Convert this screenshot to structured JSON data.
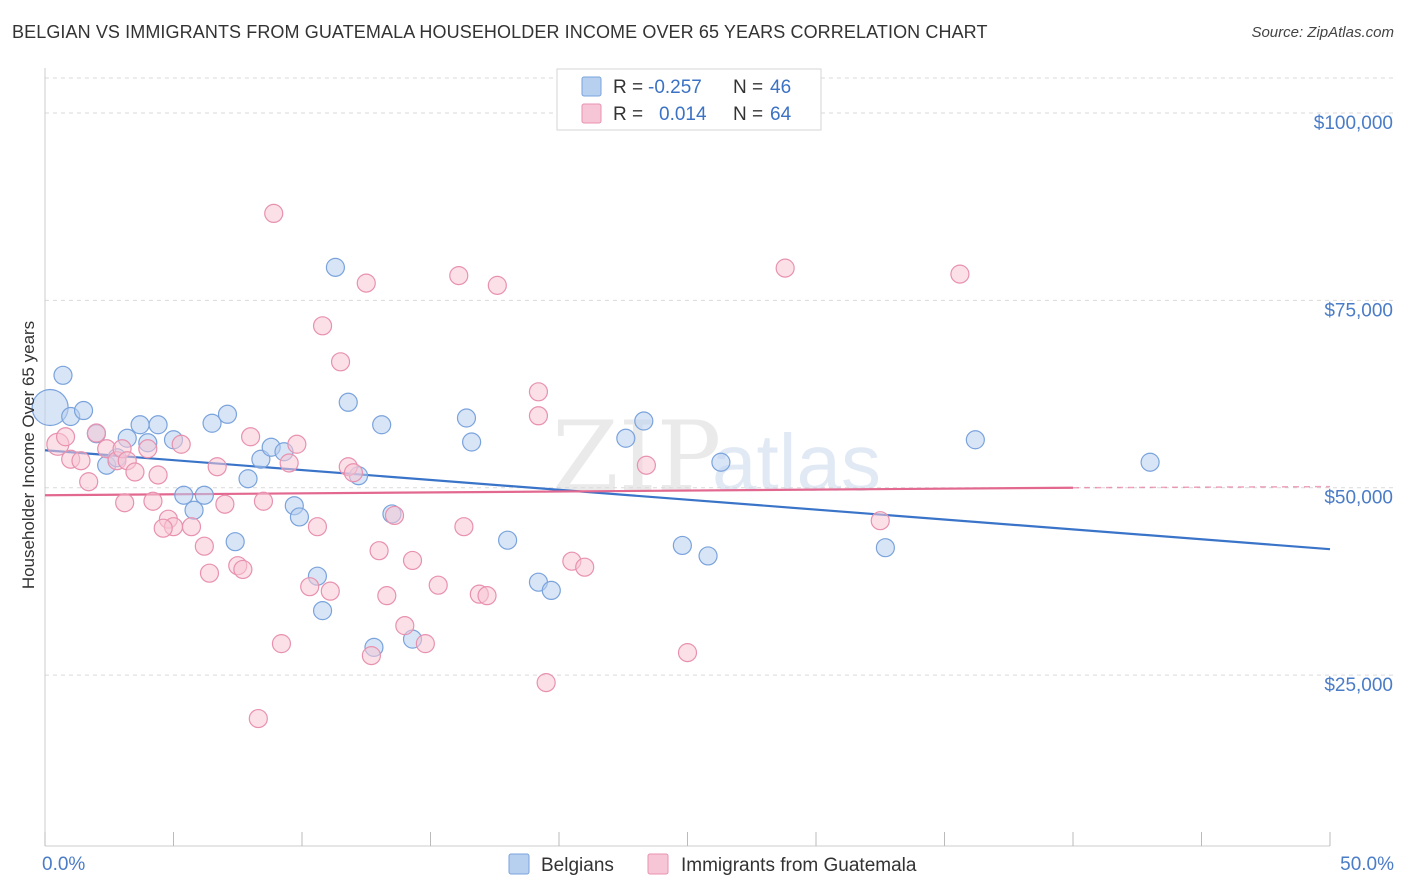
{
  "title": "BELGIAN VS IMMIGRANTS FROM GUATEMALA HOUSEHOLDER INCOME OVER 65 YEARS CORRELATION CHART",
  "source": "Source: ZipAtlas.com",
  "watermark": {
    "zip": "ZIP",
    "atlas": "atlas"
  },
  "legend": {
    "rows": [
      {
        "r_label": "R =",
        "r_value": "-0.257",
        "n_label": "N =",
        "n_value": "46"
      },
      {
        "r_label": "R =",
        "r_value": "0.014",
        "n_label": "N =",
        "n_value": "64"
      }
    ]
  },
  "bottom_legend": [
    "Belgians",
    "Immigrants from Guatemala"
  ],
  "colors": {
    "belgians_fill": "#b8d0f0",
    "belgians_stroke": "#7aa3dc",
    "belgians_line": "#3a74c9",
    "guatemala_fill": "#f7c6d6",
    "guatemala_stroke": "#e891ae",
    "guatemala_line": "#e2688f",
    "grid": "#d9d9d9",
    "tick_text": "#4a7cc7"
  },
  "chart_data": {
    "type": "scatter",
    "title": "BELGIAN VS IMMIGRANTS FROM GUATEMALA HOUSEHOLDER INCOME OVER 65 YEARS CORRELATION CHART",
    "xlabel": "",
    "ylabel": "Householder Income Over 65 years",
    "xlim": [
      0,
      50
    ],
    "ylim": [
      3000,
      106000
    ],
    "x_tick_labels": [
      "0.0%",
      "50.0%"
    ],
    "y_ticks": [
      25000,
      50000,
      75000,
      100000
    ],
    "y_tick_labels": [
      "$25,000",
      "$50,000",
      "$75,000",
      "$100,000"
    ],
    "grid": true,
    "legend_position": "top-center",
    "series": [
      {
        "name": "Belgians",
        "trend": {
          "x": [
            0,
            50
          ],
          "y": [
            55000,
            41800
          ]
        },
        "points": [
          [
            0.2,
            60700,
            18
          ],
          [
            0.7,
            65000,
            9
          ],
          [
            1.0,
            59500,
            9
          ],
          [
            1.5,
            60300,
            9
          ],
          [
            2.0,
            57200,
            9
          ],
          [
            2.4,
            53000,
            9
          ],
          [
            2.8,
            54000,
            9
          ],
          [
            3.2,
            56600,
            9
          ],
          [
            3.7,
            58400,
            9
          ],
          [
            4.0,
            56000,
            9
          ],
          [
            4.4,
            58400,
            9
          ],
          [
            5.0,
            56400,
            9
          ],
          [
            5.4,
            49000,
            9
          ],
          [
            5.8,
            47000,
            9
          ],
          [
            6.2,
            49000,
            9
          ],
          [
            6.5,
            58600,
            9
          ],
          [
            7.1,
            59800,
            9
          ],
          [
            7.4,
            42800,
            9
          ],
          [
            7.9,
            51200,
            9
          ],
          [
            8.4,
            53800,
            9
          ],
          [
            8.8,
            55400,
            9
          ],
          [
            9.3,
            54800,
            9
          ],
          [
            9.7,
            47600,
            9
          ],
          [
            9.9,
            46100,
            9
          ],
          [
            10.6,
            38200,
            9
          ],
          [
            10.8,
            33600,
            9
          ],
          [
            11.3,
            79400,
            9
          ],
          [
            11.8,
            61400,
            9
          ],
          [
            12.2,
            51600,
            9
          ],
          [
            12.8,
            28700,
            9
          ],
          [
            13.1,
            58400,
            9
          ],
          [
            13.5,
            46500,
            9
          ],
          [
            14.3,
            29800,
            9
          ],
          [
            16.4,
            59300,
            9
          ],
          [
            16.6,
            56100,
            9
          ],
          [
            18.0,
            43000,
            9
          ],
          [
            19.2,
            37400,
            9
          ],
          [
            19.7,
            36300,
            9
          ],
          [
            22.6,
            56600,
            9
          ],
          [
            23.3,
            58900,
            9
          ],
          [
            24.8,
            42300,
            9
          ],
          [
            25.8,
            40900,
            9
          ],
          [
            26.3,
            53400,
            9
          ],
          [
            32.7,
            42000,
            9
          ],
          [
            36.2,
            56400,
            9
          ],
          [
            43.0,
            53400,
            9
          ]
        ]
      },
      {
        "name": "Immigrants from Guatemala",
        "trend": {
          "x": [
            0,
            40
          ],
          "y": [
            49000,
            50000
          ]
        },
        "trend_dashed_to": [
          50,
          50150
        ],
        "points": [
          [
            0.5,
            55800,
            11
          ],
          [
            0.8,
            56800,
            9
          ],
          [
            1.0,
            53800,
            9
          ],
          [
            1.4,
            53600,
            9
          ],
          [
            1.7,
            50800,
            9
          ],
          [
            2.0,
            57300,
            9
          ],
          [
            2.4,
            55200,
            9
          ],
          [
            2.8,
            53600,
            9
          ],
          [
            3.0,
            55200,
            9
          ],
          [
            3.2,
            53600,
            9
          ],
          [
            3.5,
            52100,
            9
          ],
          [
            4.0,
            55200,
            9
          ],
          [
            4.2,
            48200,
            9
          ],
          [
            4.4,
            51700,
            9
          ],
          [
            4.8,
            45800,
            9
          ],
          [
            5.0,
            44800,
            9
          ],
          [
            5.3,
            55800,
            9
          ],
          [
            5.7,
            44800,
            9
          ],
          [
            6.2,
            42200,
            9
          ],
          [
            6.4,
            38600,
            9
          ],
          [
            6.7,
            52800,
            9
          ],
          [
            7.0,
            47800,
            9
          ],
          [
            7.5,
            39600,
            9
          ],
          [
            7.7,
            39100,
            9
          ],
          [
            8.0,
            56800,
            9
          ],
          [
            8.5,
            48200,
            9
          ],
          [
            8.9,
            86600,
            9
          ],
          [
            9.2,
            29200,
            9
          ],
          [
            9.5,
            53300,
            9
          ],
          [
            9.8,
            55800,
            9
          ],
          [
            10.3,
            36800,
            9
          ],
          [
            10.6,
            44800,
            9
          ],
          [
            10.8,
            71600,
            9
          ],
          [
            11.1,
            36200,
            9
          ],
          [
            11.5,
            66800,
            9
          ],
          [
            11.8,
            52800,
            9
          ],
          [
            12.5,
            77300,
            9
          ],
          [
            12.7,
            27600,
            9
          ],
          [
            13.0,
            41600,
            9
          ],
          [
            13.3,
            35600,
            9
          ],
          [
            13.6,
            46300,
            9
          ],
          [
            14.0,
            31600,
            9
          ],
          [
            14.3,
            40300,
            9
          ],
          [
            14.8,
            29200,
            9
          ],
          [
            15.3,
            37000,
            9
          ],
          [
            16.1,
            78300,
            9
          ],
          [
            16.3,
            44800,
            9
          ],
          [
            16.9,
            35800,
            9
          ],
          [
            17.2,
            35600,
            9
          ],
          [
            17.6,
            77000,
            9
          ],
          [
            19.2,
            62800,
            9
          ],
          [
            19.2,
            59600,
            9
          ],
          [
            19.5,
            24000,
            9
          ],
          [
            20.5,
            40200,
            9
          ],
          [
            21.0,
            39400,
            9
          ],
          [
            23.4,
            53000,
            9
          ],
          [
            25.0,
            28000,
            9
          ],
          [
            28.8,
            79300,
            9
          ],
          [
            32.5,
            45600,
            9
          ],
          [
            35.6,
            78500,
            9
          ],
          [
            8.3,
            19200,
            9
          ],
          [
            12.0,
            52000,
            9
          ],
          [
            4.6,
            44600,
            9
          ],
          [
            3.1,
            48000,
            9
          ]
        ]
      }
    ]
  }
}
